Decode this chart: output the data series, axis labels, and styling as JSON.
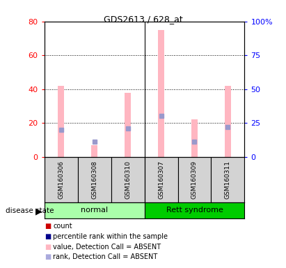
{
  "title": "GDS2613 / 628_at",
  "samples": [
    "GSM160306",
    "GSM160308",
    "GSM160310",
    "GSM160307",
    "GSM160309",
    "GSM160311"
  ],
  "ylim_left": [
    0,
    80
  ],
  "ylim_right": [
    0,
    100
  ],
  "yticks_left": [
    0,
    20,
    40,
    60,
    80
  ],
  "yticks_right": [
    0,
    25,
    50,
    75,
    100
  ],
  "ytick_labels_right": [
    "0",
    "25",
    "50",
    "75",
    "100%"
  ],
  "pink_bar_values": [
    42,
    7,
    38,
    75,
    22,
    42
  ],
  "blue_sq_values": [
    20,
    11,
    21,
    30,
    11,
    22
  ],
  "pink_bar_color": "#FFB6C1",
  "blue_sq_color": "#9999CC",
  "left_axis_color": "#FF0000",
  "right_axis_color": "#0000FF",
  "normal_color": "#AAFFAA",
  "rett_color": "#00CC00",
  "gray_box_color": "#D3D3D3",
  "legend_items": [
    {
      "color": "#CC0000",
      "marker": "s",
      "label": "count"
    },
    {
      "color": "#00008B",
      "marker": "s",
      "label": "percentile rank within the sample"
    },
    {
      "color": "#FFB6C1",
      "marker": "s",
      "label": "value, Detection Call = ABSENT"
    },
    {
      "color": "#AAAADD",
      "marker": "s",
      "label": "rank, Detection Call = ABSENT"
    }
  ],
  "disease_state_label": "disease state"
}
